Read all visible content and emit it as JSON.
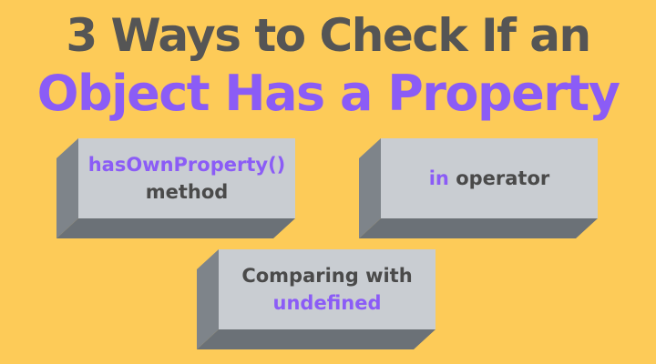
{
  "colors": {
    "background": "#FDCB58",
    "title_dark": "#555555",
    "title_accent": "#8B5CF6",
    "text_dark": "#4A4A4A",
    "text_accent": "#8B5CF6",
    "block_face": "#C9CDD2",
    "block_side": "#7E848A",
    "block_bottom": "#6B7177"
  },
  "title": {
    "line1": "3 Ways to Check If an",
    "line2": "Object Has a Property"
  },
  "blocks": [
    {
      "accent": "hasOwnProperty()",
      "rest": "method"
    },
    {
      "accent": "in",
      "rest": " operator"
    },
    {
      "rest": "Comparing with",
      "accent": "undefined"
    }
  ]
}
